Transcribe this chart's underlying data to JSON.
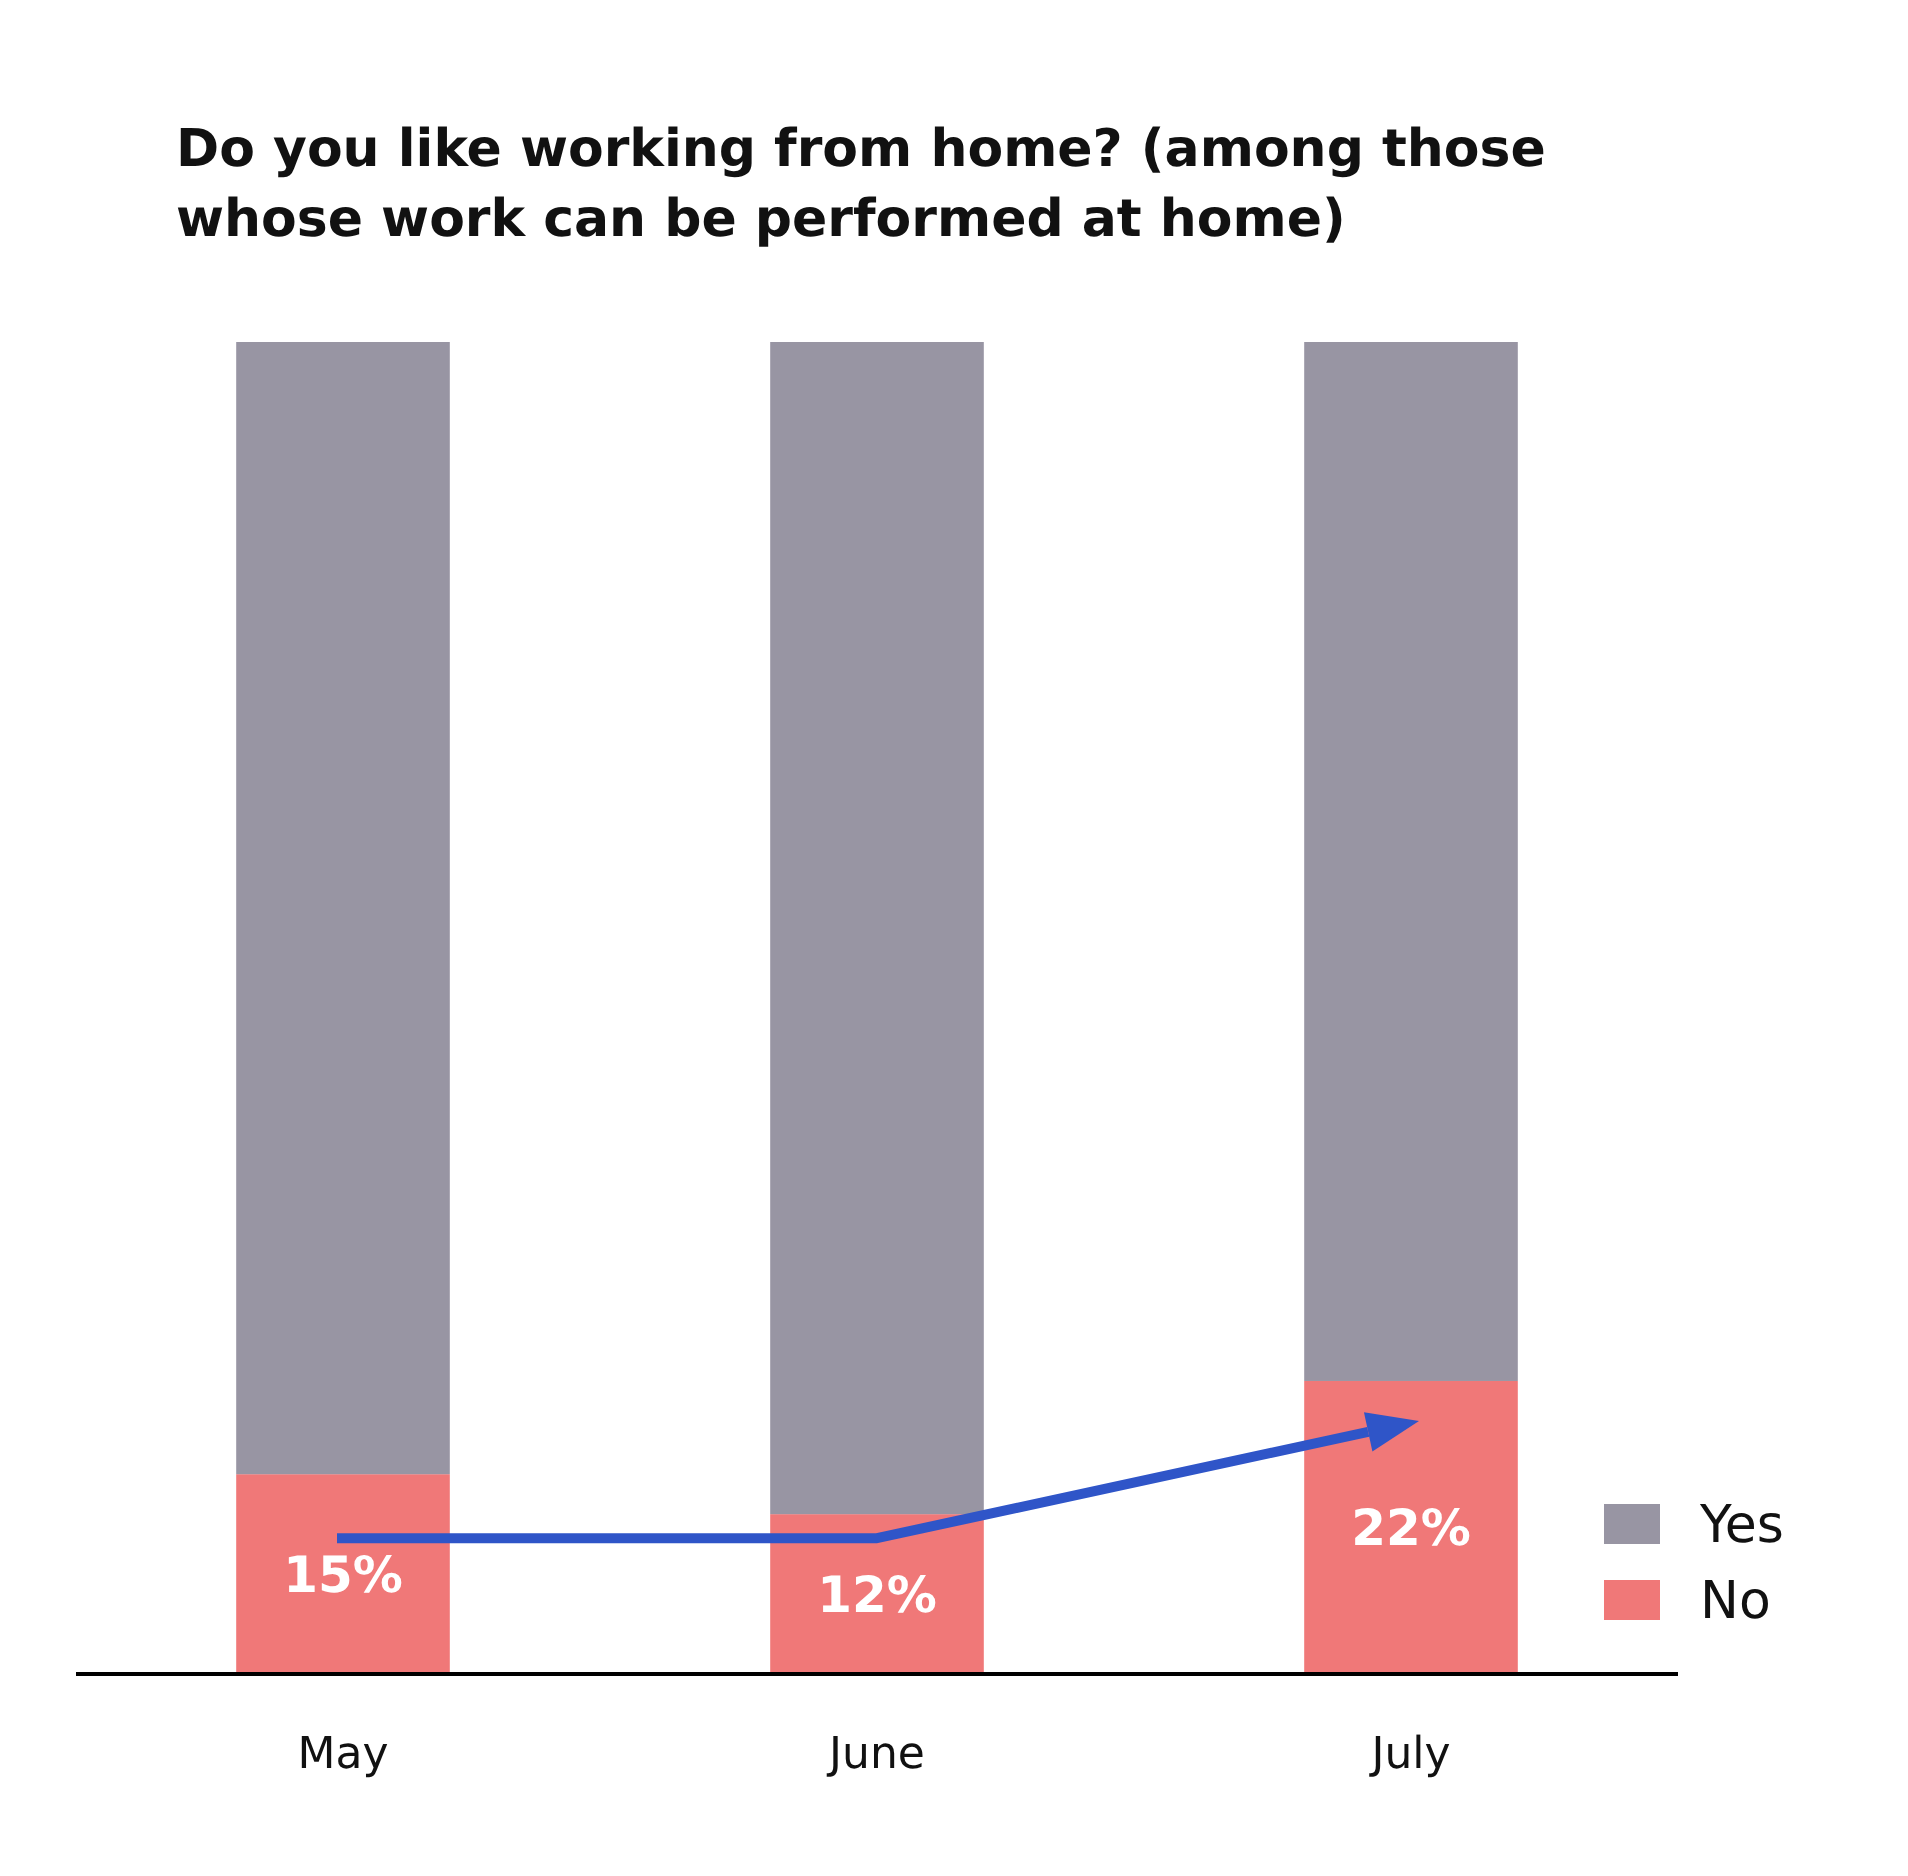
{
  "chart_data": {
    "type": "bar",
    "stacked": true,
    "title": "Do you like working from home? (among those whose work can be performed at home)",
    "categories": [
      "May",
      "June",
      "July"
    ],
    "ylim": [
      0,
      100
    ],
    "legend": "bottom right",
    "series": [
      {
        "name": "No",
        "color": "#f07878",
        "values": [
          15,
          12,
          22
        ],
        "value_labels": [
          "15%",
          "12%",
          "22%"
        ]
      },
      {
        "name": "Yes",
        "color": "#9895a3",
        "values": [
          85,
          88,
          78
        ]
      }
    ]
  }
}
